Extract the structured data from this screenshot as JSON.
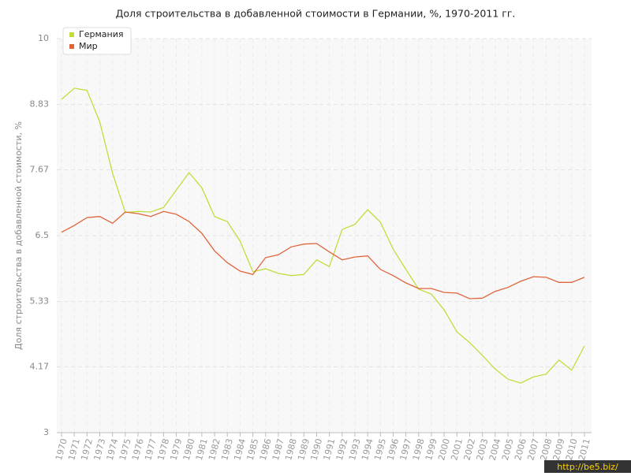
{
  "chart_data": {
    "type": "line",
    "title": "Доля строительства в добавленной стоимости в Германии, %, 1970-2011 гг.",
    "y_label": "Доля строительства в добавленной стоимости, %",
    "categories": [
      "1970",
      "1971",
      "1972",
      "1973",
      "1974",
      "1975",
      "1976",
      "1977",
      "1978",
      "1979",
      "1980",
      "1981",
      "1982",
      "1983",
      "1984",
      "1985",
      "1986",
      "1987",
      "1988",
      "1989",
      "1990",
      "1991",
      "1992",
      "1993",
      "1994",
      "1995",
      "1996",
      "1997",
      "1998",
      "1999",
      "2000",
      "2001",
      "2002",
      "2003",
      "2004",
      "2005",
      "2006",
      "2007",
      "2008",
      "2009",
      "2010",
      "2011"
    ],
    "series": [
      {
        "name": "Германия",
        "color": "#c2dc3c",
        "values": [
          8.92,
          9.12,
          9.08,
          8.52,
          7.61,
          6.91,
          6.93,
          6.92,
          7.0,
          7.31,
          7.62,
          7.35,
          6.84,
          6.75,
          6.4,
          5.86,
          5.91,
          5.83,
          5.79,
          5.81,
          6.07,
          5.95,
          6.61,
          6.7,
          6.96,
          6.74,
          6.26,
          5.9,
          5.55,
          5.46,
          5.18,
          4.79,
          4.6,
          4.37,
          4.13,
          3.95,
          3.88,
          3.99,
          4.04,
          4.29,
          4.11,
          4.54
        ]
      },
      {
        "name": "Мир",
        "color": "#e0643a",
        "values": [
          6.56,
          6.68,
          6.82,
          6.84,
          6.72,
          6.92,
          6.89,
          6.84,
          6.93,
          6.88,
          6.75,
          6.54,
          6.23,
          6.02,
          5.87,
          5.81,
          6.11,
          6.16,
          6.3,
          6.35,
          6.36,
          6.21,
          6.07,
          6.12,
          6.14,
          5.9,
          5.79,
          5.66,
          5.56,
          5.56,
          5.49,
          5.48,
          5.38,
          5.39,
          5.51,
          5.58,
          5.69,
          5.77,
          5.76,
          5.67,
          5.67,
          5.76
        ]
      }
    ],
    "ylim": [
      3,
      10
    ],
    "yticks": [
      3,
      4.17,
      5.33,
      6.5,
      7.67,
      8.83,
      10
    ],
    "grid": true,
    "legend": "top-left",
    "watermark": "http://be5.biz/"
  }
}
